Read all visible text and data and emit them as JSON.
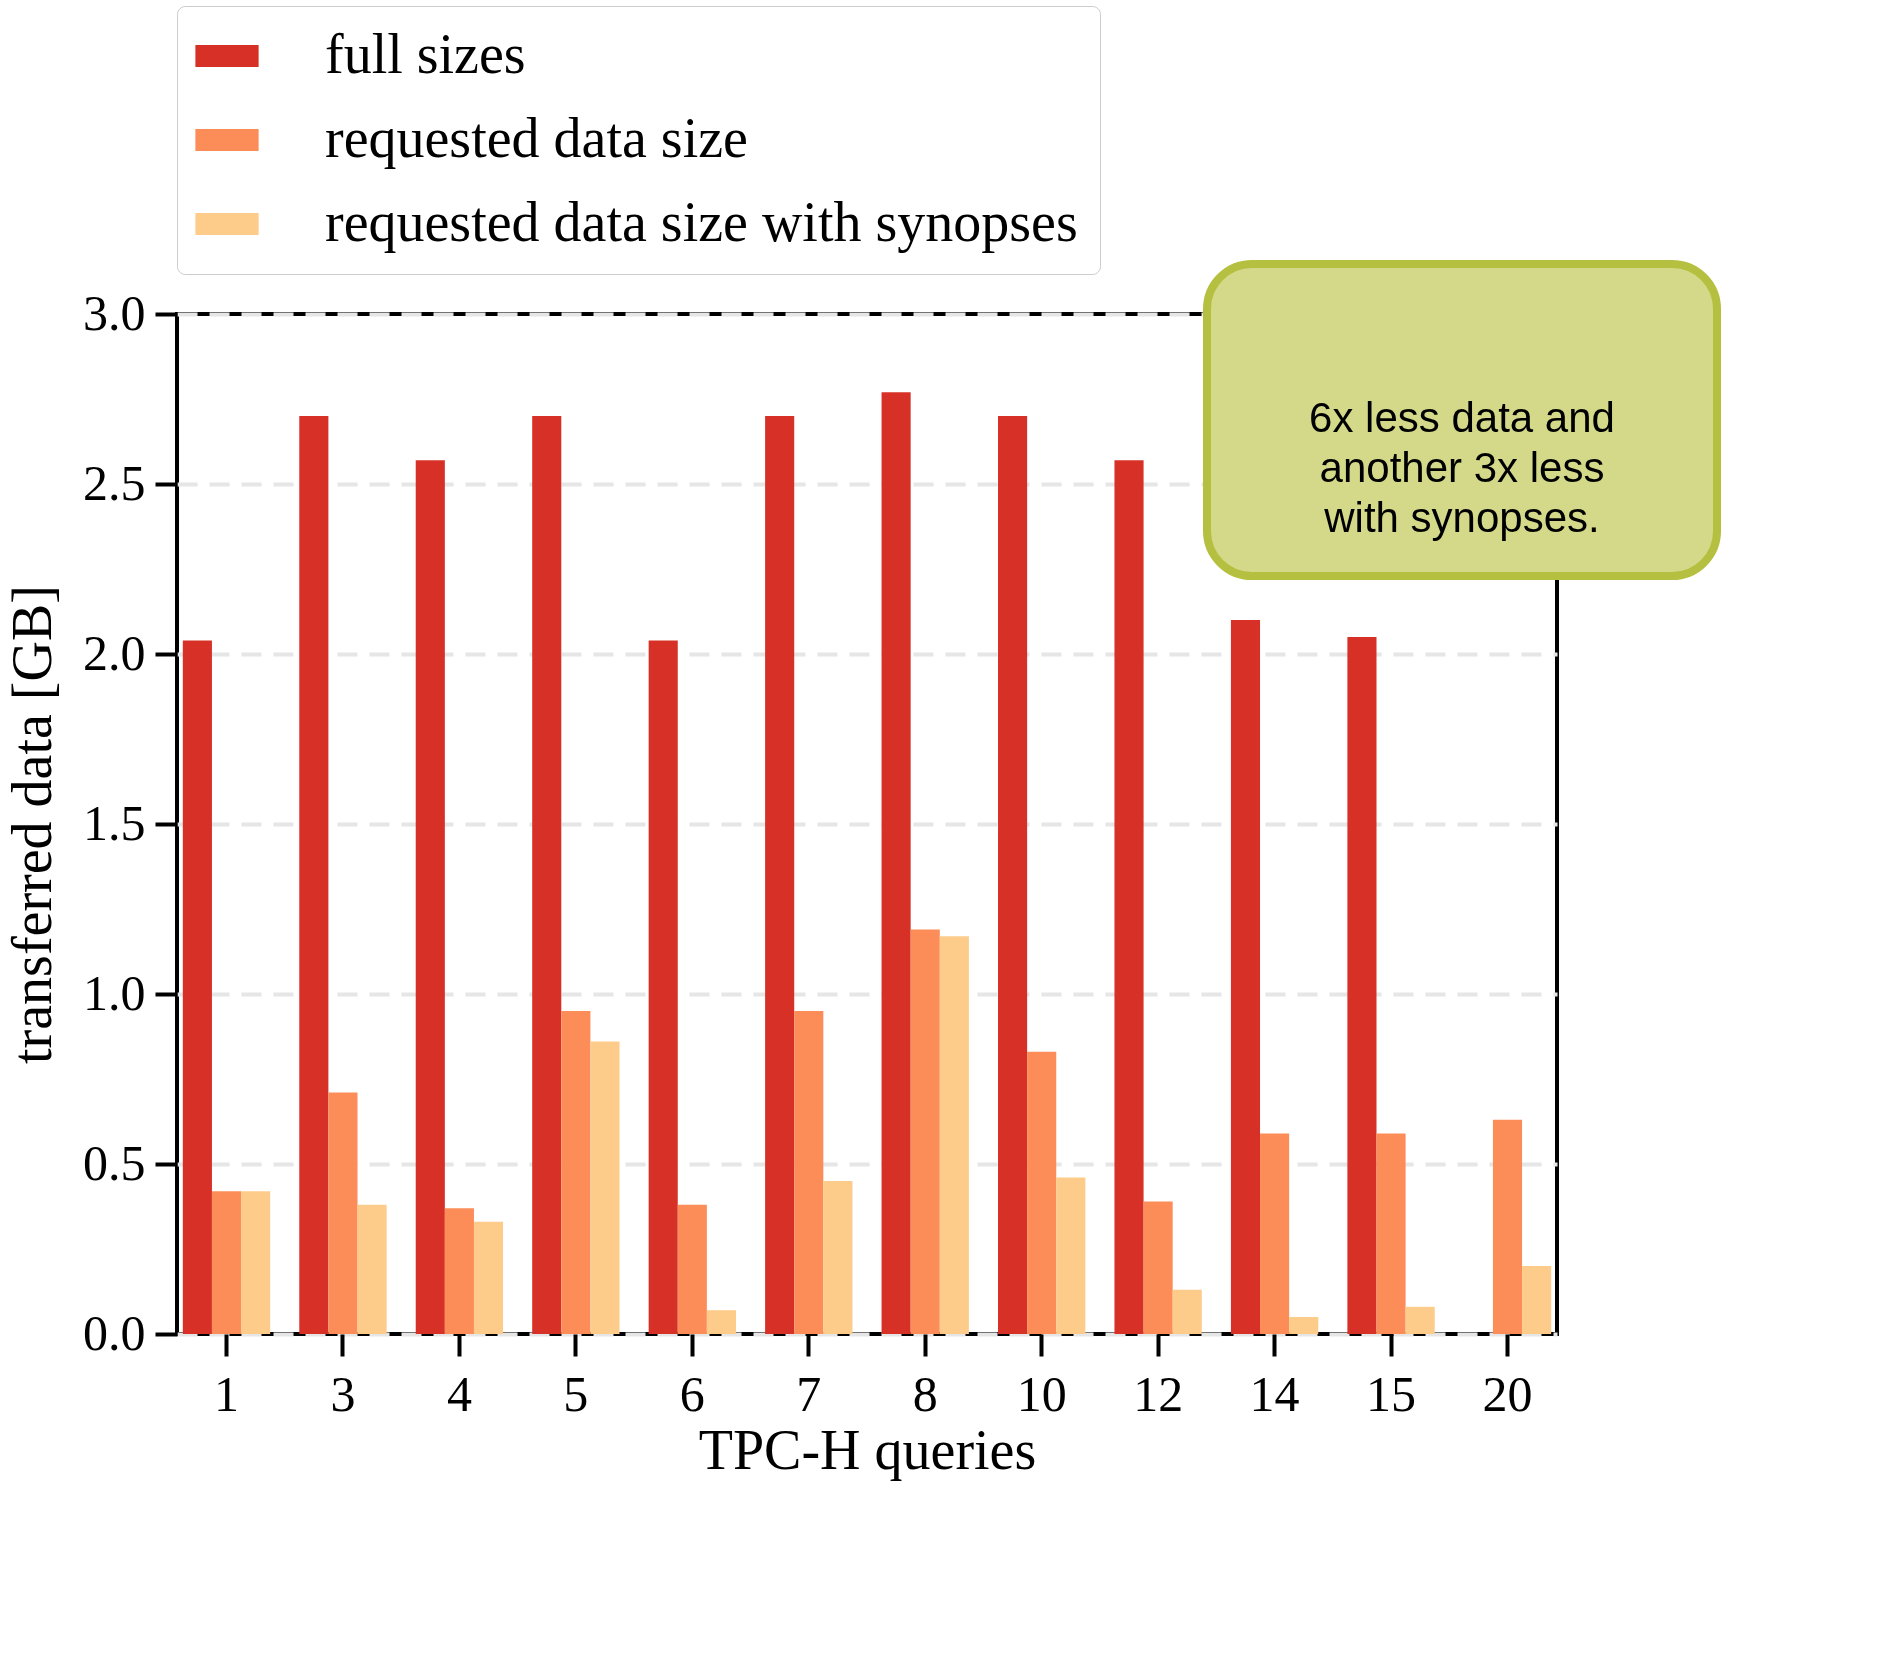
{
  "chart_data": {
    "type": "bar",
    "xlabel": "TPC-H queries",
    "ylabel": "transferred data [GB]",
    "categories": [
      "1",
      "3",
      "4",
      "5",
      "6",
      "7",
      "8",
      "10",
      "12",
      "14",
      "15",
      "20"
    ],
    "series": [
      {
        "name": "full sizes",
        "color": "#d73027",
        "values": [
          2.04,
          2.7,
          2.57,
          2.7,
          2.04,
          2.7,
          2.77,
          2.7,
          2.57,
          2.1,
          2.05,
          null
        ]
      },
      {
        "name": "requested data size",
        "color": "#fc8d59",
        "values": [
          0.42,
          0.71,
          0.37,
          0.95,
          0.38,
          0.95,
          1.19,
          0.83,
          0.39,
          0.59,
          0.59,
          0.63
        ]
      },
      {
        "name": "requested data size with synopses",
        "color": "#fdcc8a",
        "values": [
          0.42,
          0.38,
          0.33,
          0.86,
          0.07,
          0.45,
          1.17,
          0.46,
          0.13,
          0.05,
          0.08,
          0.2
        ]
      }
    ],
    "ylim": [
      0,
      3.0
    ],
    "yticks": [
      {
        "value": 0,
        "label": "0.0"
      },
      0.5,
      {
        "value": 1,
        "label": "1.0"
      },
      1.5,
      {
        "value": 2,
        "label": "2.0"
      },
      2.5,
      {
        "value": 3,
        "label": "3.0"
      }
    ],
    "grid": "y",
    "legend": "top",
    "annotations": [
      "6x less data and\nanother 3x less\nwith synopses."
    ]
  }
}
